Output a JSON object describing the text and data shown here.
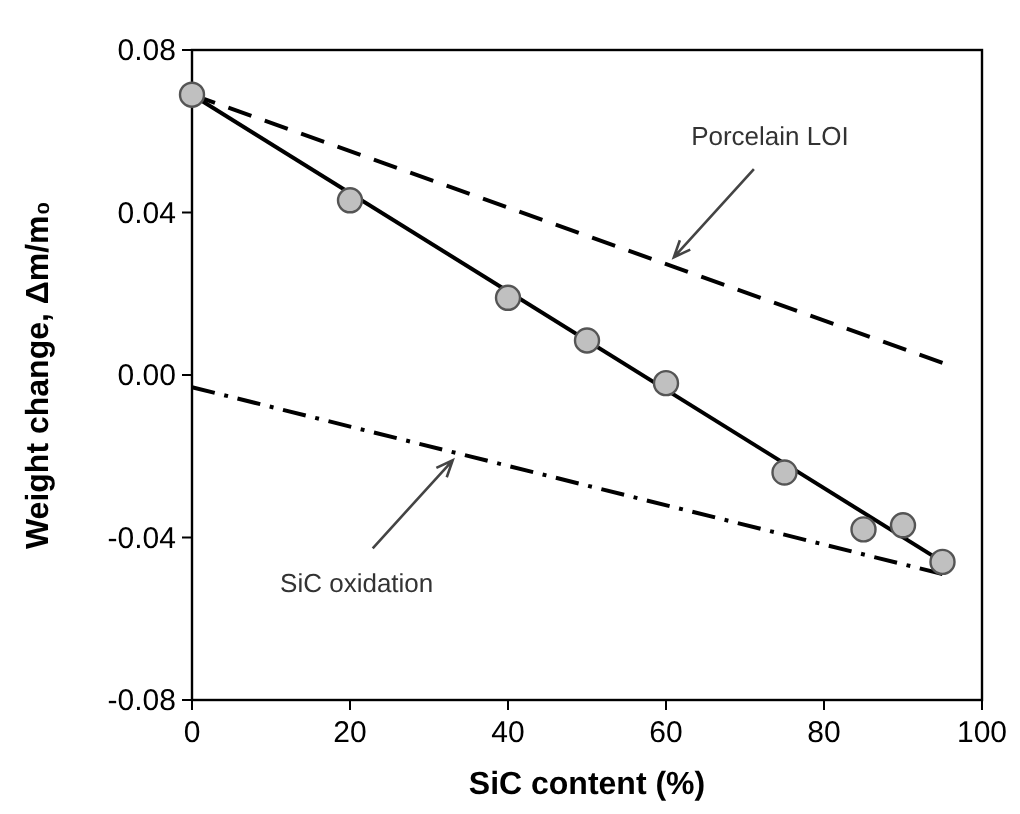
{
  "chart_data": {
    "type": "scatter",
    "xlabel": "SiC content (%)",
    "ylabel": "Weight change, Δm/m₀",
    "xlim": [
      0,
      100
    ],
    "xticks": [
      0,
      20,
      40,
      60,
      80,
      100
    ],
    "ylim": [
      -0.08,
      0.08
    ],
    "yticks": [
      {
        "value": -0.08,
        "label": "-0.08"
      },
      {
        "value": -0.04,
        "label": "-0.04"
      },
      {
        "value": 0,
        "label": "0.00"
      },
      {
        "value": 0.04,
        "label": "0.04"
      },
      {
        "value": 0.08,
        "label": "0.08"
      }
    ],
    "grid": false,
    "series": [
      {
        "color": "#c0c0c0",
        "marker": "circle",
        "x": [
          0,
          20,
          40,
          50,
          60,
          75,
          85,
          90,
          95
        ],
        "values": [
          0.069,
          0.043,
          0.019,
          0.0085,
          -0.002,
          -0.024,
          -0.038,
          -0.037,
          -0.046
        ]
      },
      {
        "type": "line",
        "color": "#000000",
        "line_style": "solid",
        "x": [
          0,
          95
        ],
        "values": [
          0.069,
          -0.046
        ]
      },
      {
        "type": "line",
        "color": "#000000",
        "line_style": "dashed",
        "x": [
          0,
          95
        ],
        "values": [
          0.069,
          0.003
        ]
      },
      {
        "type": "line",
        "color": "#000000",
        "line_style": "dashdot",
        "x": [
          0,
          95
        ],
        "values": [
          -0.003,
          -0.049
        ]
      }
    ],
    "annotations": [
      {
        "text": "Porcelain LOI",
        "x": 61,
        "y": 0.029
      },
      {
        "text": "SiC oxidation",
        "x": 33,
        "y": -0.021
      }
    ]
  }
}
